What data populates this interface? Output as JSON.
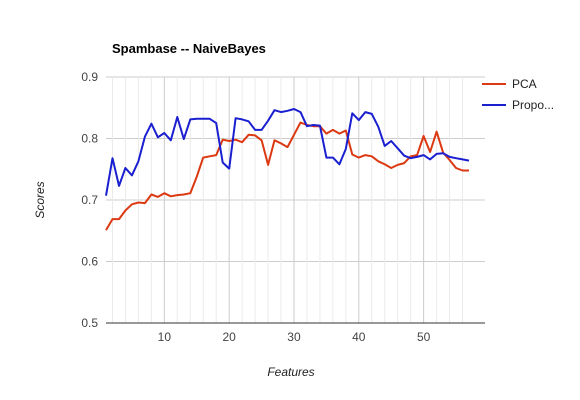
{
  "chart_data": {
    "type": "line",
    "title": "Spambase -- NaiveBayes",
    "xlabel": "Features",
    "ylabel": "Scores",
    "xlim": [
      1,
      57
    ],
    "ylim": [
      0.5,
      0.9
    ],
    "x_ticks": [
      10,
      20,
      30,
      40,
      50
    ],
    "y_ticks": [
      0.5,
      0.6,
      0.7,
      0.8,
      0.9
    ],
    "y_tick_labels": [
      "0.5",
      "0.6",
      "0.7",
      "0.8",
      "0.9"
    ],
    "grid": true,
    "legend_position": "right",
    "x": [
      1,
      2,
      3,
      4,
      5,
      6,
      7,
      8,
      9,
      10,
      11,
      12,
      13,
      14,
      15,
      16,
      17,
      18,
      19,
      20,
      21,
      22,
      23,
      24,
      25,
      26,
      27,
      28,
      29,
      30,
      31,
      32,
      33,
      34,
      35,
      36,
      37,
      38,
      39,
      40,
      41,
      42,
      43,
      44,
      45,
      46,
      47,
      48,
      49,
      50,
      51,
      52,
      53,
      54,
      55,
      56,
      57
    ],
    "series": [
      {
        "name": "PCA",
        "color": "#dc3912",
        "values": [
          0.651,
          0.669,
          0.669,
          0.683,
          0.693,
          0.696,
          0.695,
          0.709,
          0.705,
          0.711,
          0.706,
          0.708,
          0.709,
          0.711,
          0.738,
          0.769,
          0.771,
          0.773,
          0.798,
          0.796,
          0.798,
          0.794,
          0.806,
          0.805,
          0.797,
          0.757,
          0.797,
          0.792,
          0.786,
          0.806,
          0.826,
          0.822,
          0.82,
          0.82,
          0.808,
          0.814,
          0.808,
          0.813,
          0.774,
          0.769,
          0.773,
          0.771,
          0.763,
          0.758,
          0.752,
          0.757,
          0.76,
          0.771,
          0.773,
          0.804,
          0.778,
          0.811,
          0.777,
          0.765,
          0.752,
          0.748,
          0.748
        ]
      },
      {
        "name": "Propo...",
        "color": "#1a1fd0",
        "values": [
          0.707,
          0.768,
          0.723,
          0.752,
          0.74,
          0.763,
          0.803,
          0.824,
          0.802,
          0.809,
          0.797,
          0.835,
          0.799,
          0.831,
          0.832,
          0.832,
          0.832,
          0.825,
          0.761,
          0.751,
          0.833,
          0.831,
          0.828,
          0.814,
          0.814,
          0.829,
          0.846,
          0.843,
          0.845,
          0.848,
          0.843,
          0.82,
          0.822,
          0.821,
          0.769,
          0.769,
          0.758,
          0.783,
          0.841,
          0.83,
          0.843,
          0.84,
          0.819,
          0.788,
          0.796,
          0.784,
          0.772,
          0.768,
          0.77,
          0.773,
          0.766,
          0.775,
          0.776,
          0.77,
          0.768,
          0.766,
          0.764
        ]
      }
    ]
  }
}
